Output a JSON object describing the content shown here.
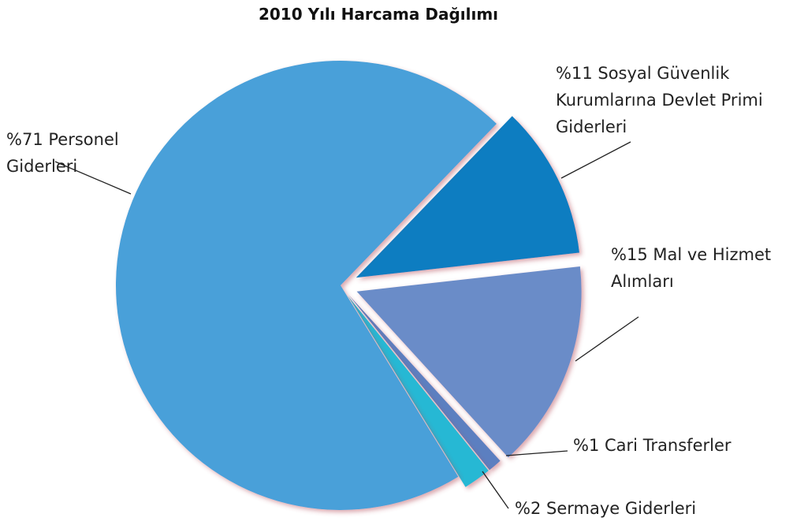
{
  "chart_data": {
    "type": "pie",
    "title": "2010 Yılı Harcama Dağılımı",
    "categories": [
      "Sosyal Güvenlik Kurumlarına Devlet Primi Giderleri",
      "Mal ve Hizmet Alımları",
      "Cari Transferler",
      "Sermaye Giderleri",
      "Personel Giderleri"
    ],
    "values": [
      11,
      15,
      1,
      2,
      71
    ],
    "value_labels": [
      "%11",
      "%15",
      "%1",
      "%2",
      "%71"
    ],
    "colors": [
      "#0b7dc1",
      "#6b8cc8",
      "#5b7fc0",
      "#26b8d4",
      "#4aa0d9"
    ]
  }
}
